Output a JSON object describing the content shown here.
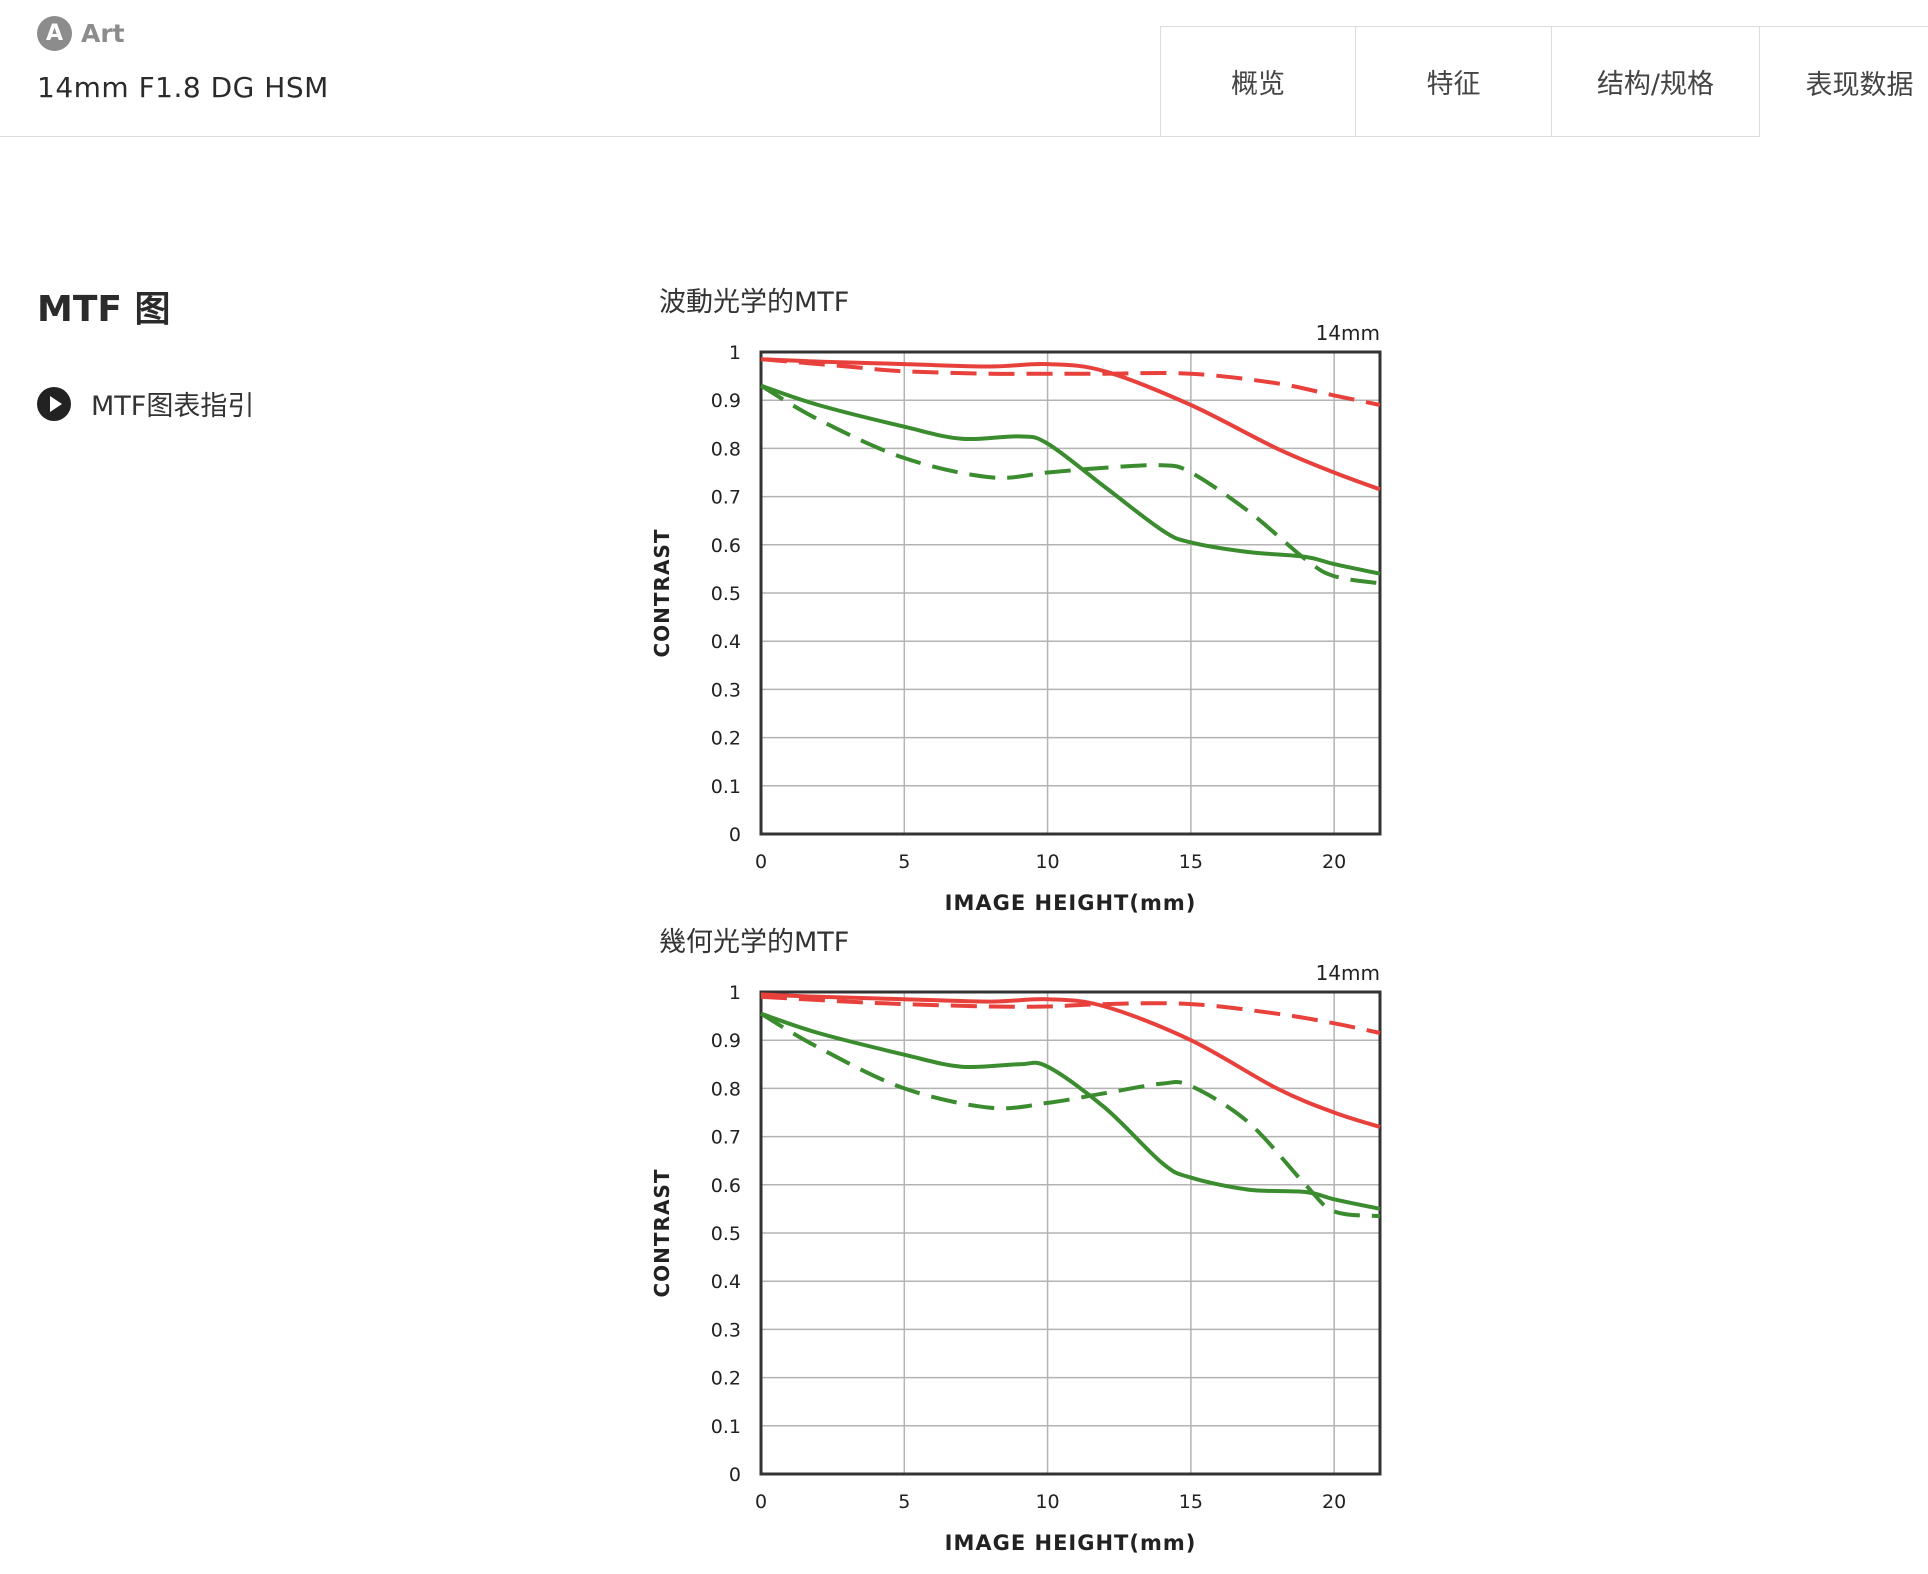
{
  "brand": {
    "badge": "A",
    "label": "Art"
  },
  "product": {
    "name": "14mm F1.8 DG HSM"
  },
  "tabs": [
    {
      "label": "概览"
    },
    {
      "label": "特征"
    },
    {
      "label": "结构/规格"
    },
    {
      "label": "表现数据"
    }
  ],
  "section": {
    "title": "MTF 图"
  },
  "guide_link": {
    "label": "MTF图表指引"
  },
  "colors": {
    "red": "#e8413c",
    "green": "#3a8c2f"
  },
  "chart_data": [
    {
      "type": "line",
      "title": "波動光学的MTF",
      "focal_length": "14mm",
      "xlabel": "IMAGE HEIGHT(mm)",
      "ylabel": "CONTRAST",
      "xlim": [
        0,
        21.6
      ],
      "ylim": [
        0,
        1
      ],
      "xticks": [
        0,
        5,
        10,
        15,
        20
      ],
      "yticks": [
        "0",
        "0.1",
        "0.2",
        "0.3",
        "0.4",
        "0.5",
        "0.6",
        "0.7",
        "0.8",
        "0.9",
        "1"
      ],
      "grid": true,
      "series": [
        {
          "color": "red",
          "dash": false,
          "x": [
            0,
            2,
            5,
            8,
            10,
            12,
            15,
            18,
            20,
            21.6
          ],
          "y": [
            0.985,
            0.98,
            0.975,
            0.97,
            0.975,
            0.96,
            0.89,
            0.8,
            0.75,
            0.715
          ]
        },
        {
          "color": "red",
          "dash": true,
          "x": [
            0,
            3,
            5,
            8,
            10,
            12,
            15,
            18,
            20,
            21.6
          ],
          "y": [
            0.985,
            0.97,
            0.96,
            0.955,
            0.955,
            0.955,
            0.955,
            0.935,
            0.91,
            0.89
          ]
        },
        {
          "color": "green",
          "dash": false,
          "x": [
            0,
            2,
            5,
            7,
            9,
            10,
            12,
            14,
            15,
            17,
            19,
            20,
            21.6
          ],
          "y": [
            0.93,
            0.89,
            0.845,
            0.82,
            0.825,
            0.81,
            0.72,
            0.63,
            0.605,
            0.585,
            0.575,
            0.56,
            0.54
          ]
        },
        {
          "color": "green",
          "dash": true,
          "x": [
            0,
            2,
            5,
            8,
            10,
            12,
            14,
            15,
            17,
            19,
            20,
            21.6
          ],
          "y": [
            0.93,
            0.86,
            0.78,
            0.74,
            0.75,
            0.76,
            0.765,
            0.75,
            0.67,
            0.57,
            0.535,
            0.52
          ]
        }
      ]
    },
    {
      "type": "line",
      "title": "幾何光学的MTF",
      "focal_length": "14mm",
      "xlabel": "IMAGE HEIGHT(mm)",
      "ylabel": "CONTRAST",
      "xlim": [
        0,
        21.6
      ],
      "ylim": [
        0,
        1
      ],
      "xticks": [
        0,
        5,
        10,
        15,
        20
      ],
      "yticks": [
        "0",
        "0.1",
        "0.2",
        "0.3",
        "0.4",
        "0.5",
        "0.6",
        "0.7",
        "0.8",
        "0.9",
        "1"
      ],
      "grid": true,
      "series": [
        {
          "color": "red",
          "dash": false,
          "x": [
            0,
            2,
            5,
            8,
            10,
            12,
            15,
            18,
            20,
            21.6
          ],
          "y": [
            0.995,
            0.99,
            0.985,
            0.98,
            0.985,
            0.97,
            0.9,
            0.8,
            0.75,
            0.72
          ]
        },
        {
          "color": "red",
          "dash": true,
          "x": [
            0,
            3,
            5,
            8,
            10,
            12,
            15,
            18,
            20,
            21.6
          ],
          "y": [
            0.99,
            0.98,
            0.975,
            0.97,
            0.97,
            0.975,
            0.975,
            0.955,
            0.935,
            0.915
          ]
        },
        {
          "color": "green",
          "dash": false,
          "x": [
            0,
            2,
            5,
            7,
            9,
            10,
            12,
            14,
            15,
            17,
            19,
            20,
            21.6
          ],
          "y": [
            0.955,
            0.915,
            0.87,
            0.845,
            0.85,
            0.845,
            0.76,
            0.645,
            0.615,
            0.59,
            0.585,
            0.57,
            0.55
          ]
        },
        {
          "color": "green",
          "dash": true,
          "x": [
            0,
            2,
            5,
            8,
            10,
            12,
            14,
            15,
            17,
            19,
            20,
            21.6
          ],
          "y": [
            0.955,
            0.885,
            0.8,
            0.76,
            0.77,
            0.79,
            0.81,
            0.805,
            0.73,
            0.6,
            0.545,
            0.535
          ]
        }
      ]
    }
  ]
}
